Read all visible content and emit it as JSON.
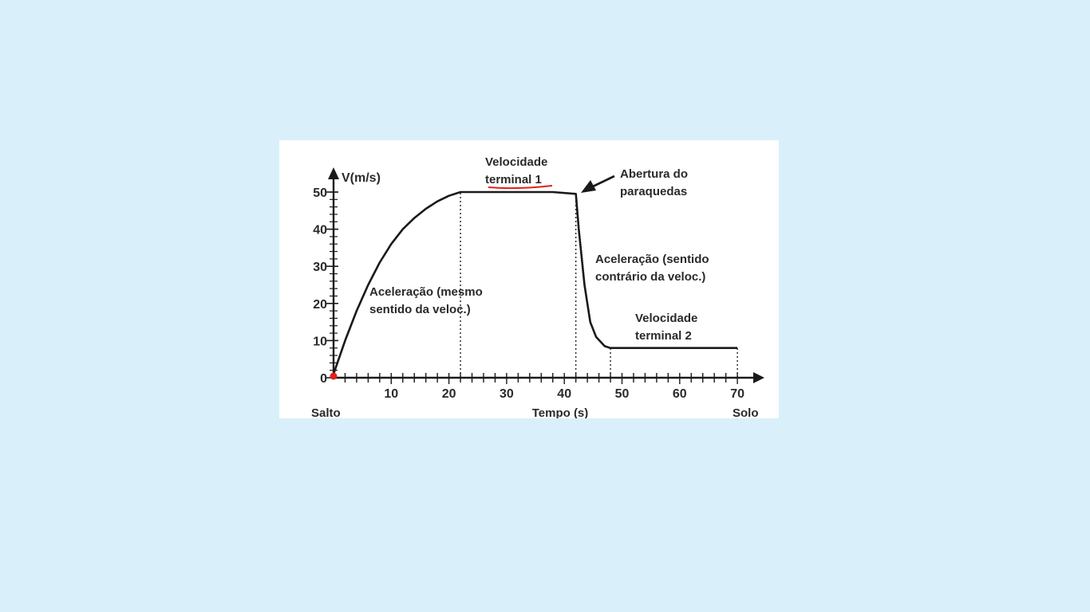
{
  "chart_data": {
    "type": "line",
    "title": "",
    "ylabel": "V(m/s)",
    "xlabel": "Tempo (s)",
    "xlim": [
      0,
      72
    ],
    "ylim": [
      0,
      53
    ],
    "x_ticks": [
      10,
      20,
      30,
      40,
      50,
      60,
      70
    ],
    "y_ticks": [
      0,
      10,
      20,
      30,
      40,
      50
    ],
    "x_start_label": "Salto",
    "x_end_label": "Solo",
    "grid": false,
    "series": [
      {
        "x": [
          0,
          2,
          4,
          6,
          8,
          10,
          12,
          14,
          16,
          18,
          20,
          22,
          30,
          38,
          42,
          42.5,
          43.5,
          44.5,
          45.5,
          47,
          48,
          55,
          63,
          70
        ],
        "y": [
          1,
          10,
          18,
          25,
          31,
          36,
          40,
          43,
          45.5,
          47.5,
          49,
          50,
          50,
          50,
          49.5,
          40,
          25,
          15,
          11,
          8.5,
          8,
          8,
          8,
          8
        ]
      }
    ],
    "reference_lines_x": [
      22,
      42,
      48,
      70
    ],
    "start_marker": {
      "x": 0,
      "y": 0,
      "color": "#e0201a"
    },
    "line_color": "#1a1a1a",
    "highlight_color": "#e0201a",
    "annotations": [
      {
        "id": "terminal-1",
        "lines": [
          "Velocidade",
          "terminal 1"
        ],
        "underline": true
      },
      {
        "id": "parachute-opening",
        "lines": [
          "Abertura do",
          "paraquedas"
        ],
        "arrow": true
      },
      {
        "id": "acceleration-1",
        "lines": [
          "Aceleração (mesmo",
          "sentido da veloc.)"
        ]
      },
      {
        "id": "acceleration-2",
        "lines": [
          "Aceleração (sentido",
          "contrário da veloc.)"
        ]
      },
      {
        "id": "terminal-2",
        "lines": [
          "Velocidade",
          "terminal 2"
        ]
      }
    ]
  }
}
